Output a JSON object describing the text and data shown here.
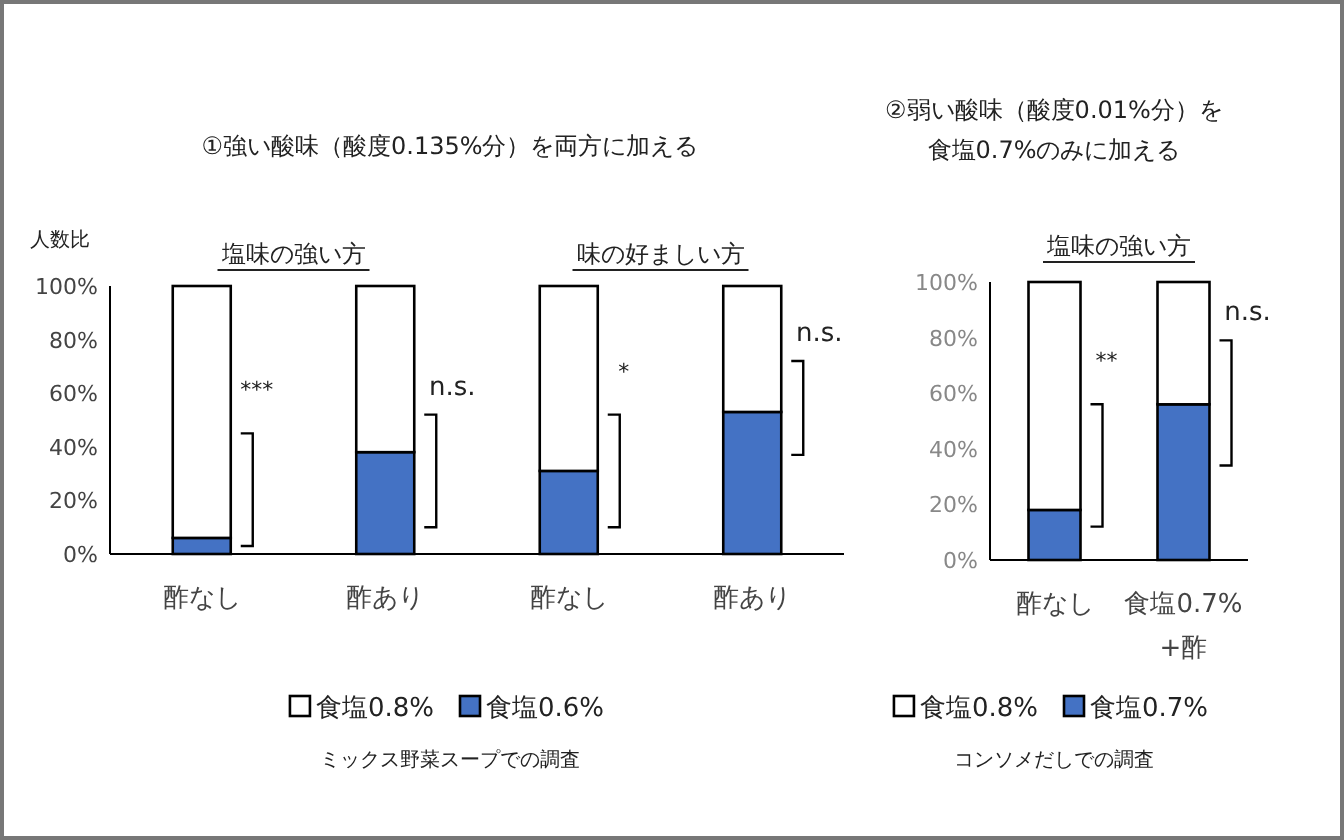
{
  "chart_data": [
    {
      "type": "bar",
      "stacked": true,
      "title": "①強い酸味（酸度0.135%分）を両方に加える",
      "ylabel": "人数比",
      "categories": [
        "酢なし",
        "酢あり",
        "酢なし",
        "酢あり"
      ],
      "series": [
        {
          "name": "食塩0.6%",
          "color": "#4472c4",
          "values": [
            6,
            38,
            31,
            53
          ]
        },
        {
          "name": "食塩0.8%",
          "color": "#ffffff",
          "values": [
            94,
            62,
            69,
            47
          ]
        }
      ],
      "ylim": [
        0,
        100
      ],
      "yticks": [
        {
          "value": 0,
          "label": "0%"
        },
        {
          "value": 20,
          "label": "20%"
        },
        {
          "value": 40,
          "label": "40%"
        },
        {
          "value": 60,
          "label": "60%"
        },
        {
          "value": 80,
          "label": "80%"
        },
        {
          "value": 100,
          "label": "100%"
        }
      ],
      "legend": "bottom",
      "annotations": [
        "塩味の強い方",
        "味の好ましい方",
        "***",
        "n.s.",
        "*",
        "n.s.",
        "ミックス野菜スープでの調査"
      ]
    },
    {
      "type": "bar",
      "stacked": true,
      "title": "②弱い酸味（酸度0.01%分）を食塩0.7%のみに加える",
      "categories": [
        "酢なし",
        "食塩0.7%+酢"
      ],
      "series": [
        {
          "name": "食塩0.7%",
          "color": "#4472c4",
          "values": [
            18,
            56
          ]
        },
        {
          "name": "食塩0.8%",
          "color": "#ffffff",
          "values": [
            82,
            44
          ]
        }
      ],
      "ylim": [
        0,
        100
      ],
      "yticks": [
        {
          "value": 0,
          "label": "0%"
        },
        {
          "value": 20,
          "label": "20%"
        },
        {
          "value": 40,
          "label": "40%"
        },
        {
          "value": 60,
          "label": "60%"
        },
        {
          "value": 80,
          "label": "80%"
        },
        {
          "value": 100,
          "label": "100%"
        }
      ],
      "legend": "bottom",
      "annotations": [
        "塩味の強い方",
        "**",
        "n.s.",
        "コンソメだしでの調査"
      ]
    }
  ]
}
